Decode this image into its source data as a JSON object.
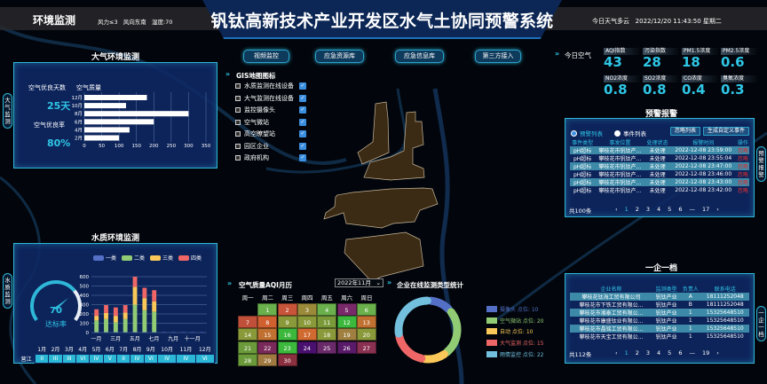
{
  "header": {
    "section": "环境监测",
    "weather_info": "风力≤3   风向东南   湿度:70",
    "title": "钒钛高新技术产业开发区水气土协同预警系统",
    "datetime": "今日天气多云   2022/12/20 11:43:50 星期二"
  },
  "side_tabs": {
    "air": "大气监测",
    "water": "水质监测",
    "warning": "预警报警",
    "enterprise": "一企一档"
  },
  "air_panel": {
    "title": "大气环境监测",
    "good_days_label": "空气优良天数",
    "good_days": "25天",
    "good_rate_label": "空气优良率",
    "good_rate": "80%",
    "chart_data": {
      "type": "bar",
      "orientation": "horizontal",
      "title": "空气质量",
      "categories": [
        "12月",
        "10月",
        "8月",
        "6月",
        "4月",
        "2月"
      ],
      "values": [
        180,
        120,
        300,
        200,
        130,
        100
      ],
      "xlim": [
        0,
        350
      ],
      "xticks": [
        "0",
        "50",
        "100",
        "150",
        "200",
        "250",
        "300",
        "350"
      ],
      "bar_color": "#ffffff"
    }
  },
  "water_panel": {
    "title": "水质环境监测",
    "gauge_value": "70",
    "gauge_label": "达标率",
    "gauge_fraction": 0.7,
    "chart_data": {
      "type": "bar",
      "stacked": true,
      "categories": [
        "一月",
        "二月",
        "三月",
        "四月",
        "五月",
        "六月",
        "七月",
        "八月",
        "九月",
        "十月",
        "十一月",
        "十二月"
      ],
      "xtick_labels": [
        "一月",
        "",
        "三月",
        "",
        "五月",
        "",
        "七月",
        "",
        "九月",
        "",
        "十一月",
        ""
      ],
      "ylim": [
        0,
        600
      ],
      "yticks": [
        "0",
        "100",
        "200",
        "300",
        "400",
        "500",
        "600"
      ],
      "series": [
        {
          "name": "一类",
          "color": "#5470c6",
          "values": [
            5,
            5,
            5,
            5,
            5,
            5,
            5,
            5,
            5,
            5,
            5,
            5
          ]
        },
        {
          "name": "二类",
          "color": "#91cc75",
          "values": [
            125,
            140,
            105,
            140,
            295,
            235,
            220,
            0,
            0,
            0,
            0,
            0
          ]
        },
        {
          "name": "三类",
          "color": "#fac858",
          "values": [
            50,
            65,
            70,
            70,
            190,
            130,
            110,
            0,
            0,
            0,
            0,
            0
          ]
        },
        {
          "name": "四类",
          "color": "#ee6666",
          "values": [
            70,
            85,
            90,
            80,
            110,
            110,
            120,
            0,
            0,
            0,
            0,
            0
          ]
        }
      ]
    },
    "table": {
      "months": [
        "1月",
        "2月",
        "3月",
        "4月",
        "5月",
        "6月",
        "7月",
        "8月",
        "9月",
        "10月",
        "11月",
        "12月"
      ],
      "row_label": "营江",
      "classes": [
        "II",
        "III",
        "III",
        "VI",
        "IV",
        "V",
        "II",
        "IV",
        "VI",
        "IV",
        "IV",
        "VI"
      ]
    }
  },
  "center": {
    "buttons": [
      "视频监控",
      "应急资源库",
      "应急信息库",
      "第三方接入"
    ],
    "gis": {
      "title": "GIS地图图标",
      "items": [
        "水质监测在线设备",
        "大气监测在线设备",
        "监控摄像头",
        "空气微站",
        "高空瞭望站",
        "园区企业",
        "政府机构"
      ]
    },
    "calendar": {
      "title": "空气质量AQI月历",
      "month_select": "2022年11月",
      "weekdays": [
        "周一",
        "周二",
        "周三",
        "周四",
        "周五",
        "周六",
        "周日"
      ],
      "first_weekday_index": 1,
      "days": [
        "1",
        "2",
        "3",
        "4",
        "5",
        "6",
        "7",
        "8",
        "9",
        "10",
        "11",
        "12",
        "13",
        "14",
        "15",
        "16",
        "17",
        "18",
        "19",
        "20",
        "21",
        "22",
        "23",
        "24",
        "25",
        "26",
        "27",
        "28",
        "29",
        "30"
      ],
      "colors": [
        "#6ab04c",
        "#c8553a",
        "#9a8a3a",
        "#6ab04c",
        "#7a2a6a",
        "#6ab04c",
        "#c0503a",
        "#d06030",
        "#8a9a3a",
        "#8a9a3a",
        "#7a9a3a",
        "#3cb83c",
        "#c07030",
        "#8a9a3a",
        "#c07030",
        "#3cb83c",
        "#d06a30",
        "#8a9a3a",
        "#a08040",
        "#8a9a3a",
        "#6a9a3a",
        "#7a2a5a",
        "#3cb83c",
        "#4a1070",
        "#6a2a6a",
        "#5a1a6a",
        "#8a3050",
        "#6a9a3a",
        "#a07a40",
        "#8a3040"
      ]
    },
    "donut": {
      "title": "企业在线监测类型统计",
      "chart_data": {
        "type": "pie",
        "donut": true,
        "slices": [
          {
            "label": "摄像头 点位: 10",
            "value": 10,
            "color": "#5470c6"
          },
          {
            "label": "空气微站 点位: 20",
            "value": 20,
            "color": "#91cc75"
          },
          {
            "label": "自动 点位: 10",
            "value": 10,
            "color": "#fac858"
          },
          {
            "label": "大气监测 点位: 15",
            "value": 15,
            "color": "#ee6666"
          },
          {
            "label": "雨情监控 点位: 22",
            "value": 22,
            "color": "#73c0de"
          }
        ]
      }
    }
  },
  "air_today": {
    "title": "今日空气",
    "metrics": [
      {
        "label": "AQI指数",
        "value": "43"
      },
      {
        "label": "污染指数",
        "value": "28"
      },
      {
        "label": "PM1.5浓度",
        "value": "18"
      },
      {
        "label": "PM2.5浓度",
        "value": "0.6"
      },
      {
        "label": "NO2浓度",
        "value": "0.8"
      },
      {
        "label": "SO2浓度",
        "value": "0.8"
      },
      {
        "label": "CO浓度",
        "value": "0.4"
      },
      {
        "label": "臭氧浓度",
        "value": "0.3"
      }
    ]
  },
  "warning": {
    "title": "预警报警",
    "radio_warning": "预警列表",
    "radio_event": "事件列表",
    "btn_ignore_list": "忽略列表",
    "btn_custom_event": "生成自定义事件",
    "headers": [
      "事件类型",
      "事发位置",
      "处理状态",
      "报警时间",
      "操作"
    ],
    "rows": [
      [
        "pH超标",
        "攀枝花市钒钛产...",
        "未处理",
        "2022-12-08 23:59:00",
        "忽略"
      ],
      [
        "pH超标",
        "攀枝花市钒钛产...",
        "未处理",
        "2022-12-08 23:55:04",
        "忽略"
      ],
      [
        "pH超标",
        "攀枝花市钒钛产...",
        "未处理",
        "2022-12-08 23:47:00",
        "忽略"
      ],
      [
        "pH超标",
        "攀枝花市钒钛产...",
        "未处理",
        "2022-12-08 23:46:00",
        "忽略"
      ],
      [
        "pH超标",
        "攀枝花市钒钛产...",
        "未处理",
        "2022-12-08 23:43:00",
        "忽略"
      ],
      [
        "pH超标",
        "攀枝花市钒钛产...",
        "未处理",
        "2022-12-08 23:42:00",
        "忽略"
      ]
    ],
    "total": "共100条",
    "pages": [
      "‹",
      "1",
      "2",
      "3",
      "4",
      "5",
      "6",
      "—",
      "17",
      "›"
    ],
    "current_page": "1"
  },
  "enterprise": {
    "title": "一企一档",
    "headers": [
      "企业名称",
      "监测类型",
      "负责人",
      "联系电话"
    ],
    "rows": [
      [
        "攀枝花钛海工贸有限公司",
        "钒钛产业",
        "A",
        "18111252048"
      ],
      [
        "攀枝花市下铁工贸有限公...",
        "钒钛产业",
        "B",
        "18111252048"
      ],
      [
        "攀枝花市湘泰工贸有限公...",
        "钒钛产业",
        "1",
        "15325648510"
      ],
      [
        "攀枝花市康盛钛业有限公...",
        "钒钛产业",
        "1",
        "15325648510"
      ],
      [
        "攀枝花市晶铭工贸有限公...",
        "钒钛产业",
        "1",
        "15325648510"
      ],
      [
        "攀枝花市天宝工贸有限公...",
        "钒钛产业",
        "1",
        "15325648510"
      ]
    ],
    "total": "共112条",
    "pages": [
      "‹",
      "1",
      "2",
      "3",
      "4",
      "5",
      "6",
      "—",
      "19",
      "›"
    ],
    "current_page": "1"
  }
}
